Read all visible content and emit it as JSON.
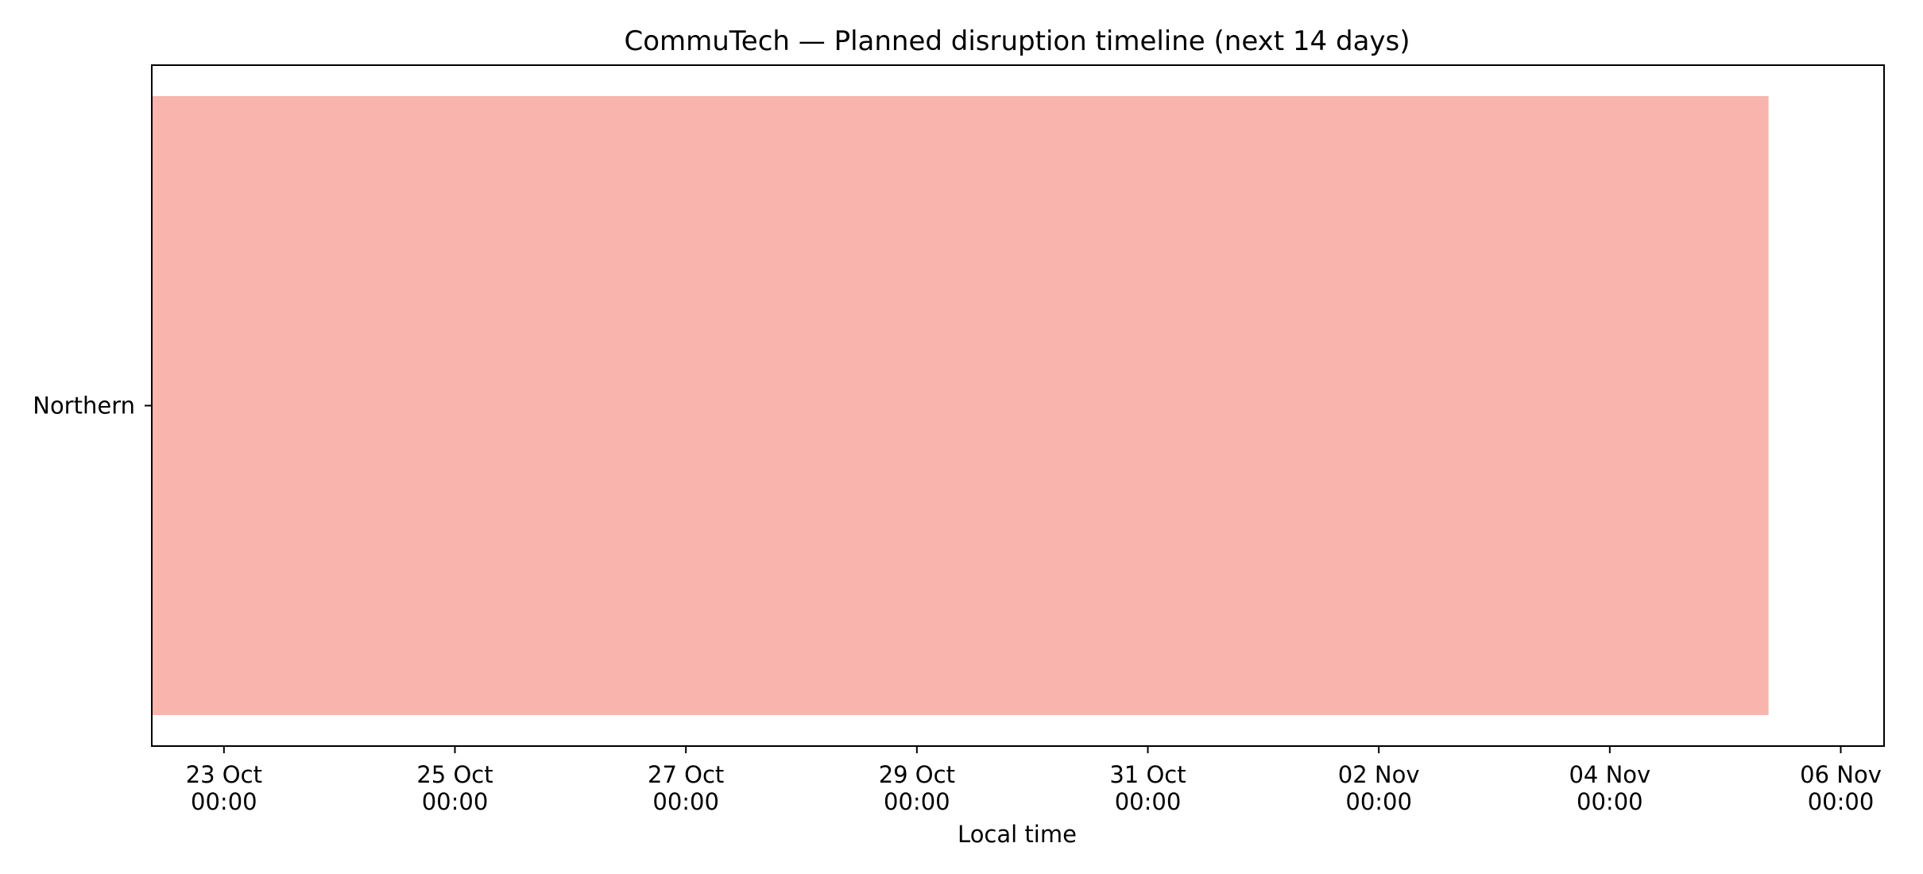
{
  "chart_data": {
    "type": "bar",
    "orientation": "horizontal",
    "title": "CommuTech — Planned disruption timeline (next 14 days)",
    "xlabel": "Local time",
    "ylabel": "",
    "categories": [
      "Northern"
    ],
    "bars": [
      {
        "category": "Northern",
        "start": "2025-10-22T09:00",
        "end": "2025-11-05T09:00",
        "color": "#f9b4ae"
      }
    ],
    "xlim": [
      "2025-10-22T09:00",
      "2025-11-06T09:00"
    ],
    "x_ticks": [
      {
        "value": "2025-10-23T00:00",
        "line1": "23 Oct",
        "line2": "00:00"
      },
      {
        "value": "2025-10-25T00:00",
        "line1": "25 Oct",
        "line2": "00:00"
      },
      {
        "value": "2025-10-27T00:00",
        "line1": "27 Oct",
        "line2": "00:00"
      },
      {
        "value": "2025-10-29T00:00",
        "line1": "29 Oct",
        "line2": "00:00"
      },
      {
        "value": "2025-10-31T00:00",
        "line1": "31 Oct",
        "line2": "00:00"
      },
      {
        "value": "2025-11-02T00:00",
        "line1": "02 Nov",
        "line2": "00:00"
      },
      {
        "value": "2025-11-04T00:00",
        "line1": "04 Nov",
        "line2": "00:00"
      },
      {
        "value": "2025-11-06T00:00",
        "line1": "06 Nov",
        "line2": "00:00"
      }
    ],
    "grid": false,
    "legend": "none"
  }
}
